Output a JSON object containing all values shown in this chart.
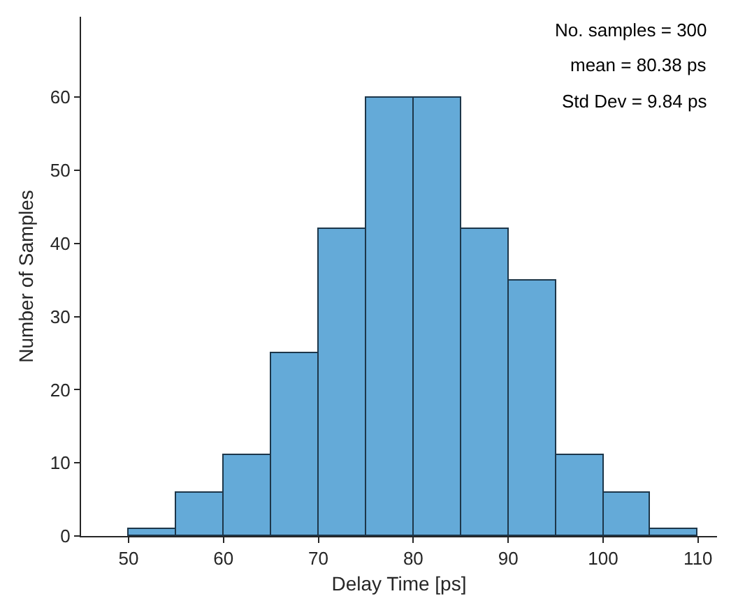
{
  "chart_data": {
    "type": "histogram",
    "xlabel": "Delay Time [ps]",
    "ylabel": "Number of Samples",
    "bins": [
      50,
      55,
      60,
      65,
      70,
      75,
      80,
      85,
      90,
      95,
      100,
      105,
      110
    ],
    "values": [
      1,
      6,
      11,
      25,
      42,
      60,
      60,
      42,
      35,
      11,
      6,
      1
    ],
    "color": "#64aad8",
    "xlim": [
      45,
      112
    ],
    "xticks": [
      50,
      60,
      70,
      80,
      90,
      100,
      110
    ],
    "ylim": [
      0,
      71
    ],
    "yticks": [
      0,
      10,
      20,
      30,
      40,
      50,
      60
    ],
    "annotations": [
      "No. samples = 300",
      "mean = 80.38 ps",
      "Std Dev = 9.84 ps"
    ]
  }
}
